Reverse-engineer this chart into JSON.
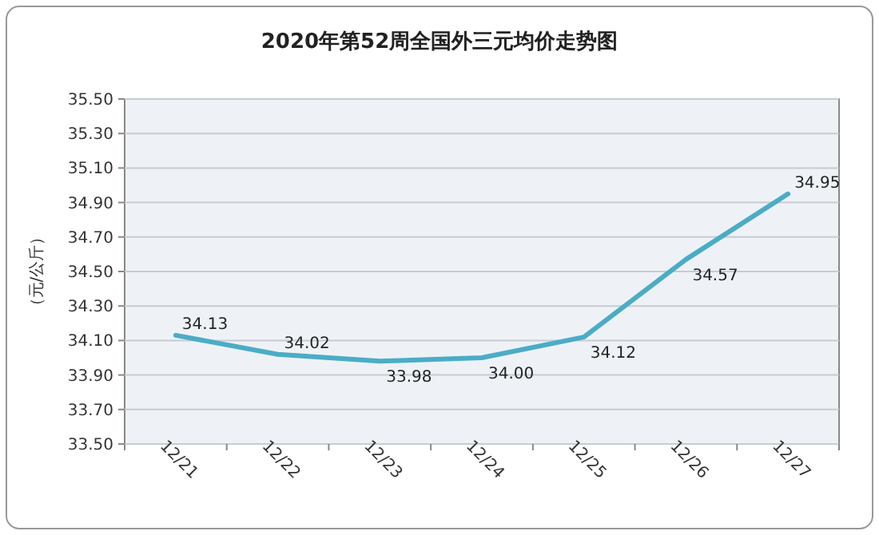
{
  "chart_data": {
    "type": "line",
    "title": "2020年第52周全国外三元均价走势图",
    "ylabel": "（元/公斤）",
    "categories": [
      "12/21",
      "12/22",
      "12/23",
      "12/24",
      "12/25",
      "12/26",
      "12/27"
    ],
    "series": [
      {
        "color": "#4bacc6",
        "values": [
          34.13,
          34.02,
          33.98,
          34.0,
          34.12,
          34.57,
          34.95
        ],
        "value_labels": [
          "34.13",
          "34.02",
          "33.98",
          "34.00",
          "34.12",
          "34.57",
          "34.95"
        ]
      }
    ],
    "ylim": [
      33.5,
      35.5
    ],
    "yticks": [
      {
        "value": 33.5,
        "label": "33.50"
      },
      {
        "value": 33.7,
        "label": "33.70"
      },
      {
        "value": 33.9,
        "label": "33.90"
      },
      {
        "value": 34.1,
        "label": "34.10"
      },
      {
        "value": 34.3,
        "label": "34.30"
      },
      {
        "value": 34.5,
        "label": "34.50"
      },
      {
        "value": 34.7,
        "label": "34.70"
      },
      {
        "value": 34.9,
        "label": "34.90"
      },
      {
        "value": 35.1,
        "label": "35.10"
      },
      {
        "value": 35.3,
        "label": "35.30"
      },
      {
        "value": 35.5,
        "label": "35.50"
      }
    ],
    "grid": "y",
    "marker": "none",
    "line_style": "solid"
  }
}
